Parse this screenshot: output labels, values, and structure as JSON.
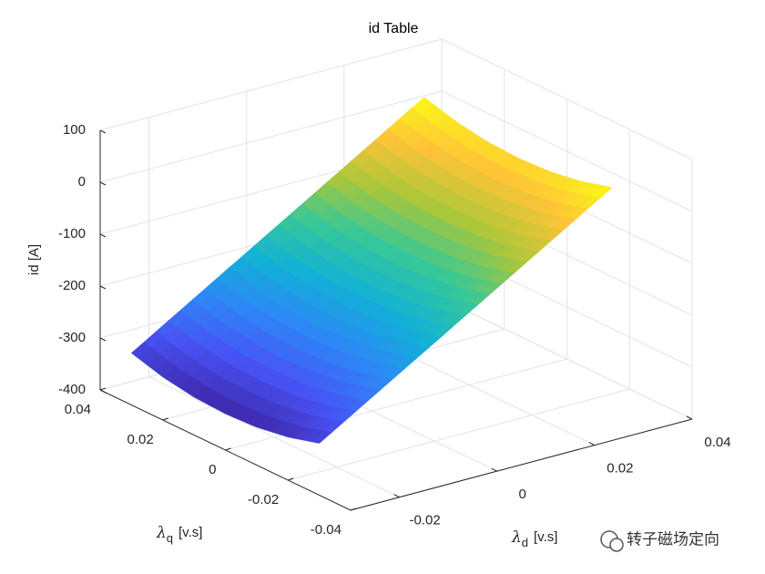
{
  "chart_data": {
    "type": "surface",
    "title": "id Table",
    "xlabel": {
      "symbol": "λ",
      "subscript": "d",
      "text": "[v.s]"
    },
    "ylabel": {
      "symbol": "λ",
      "subscript": "q",
      "text": "[v.s]"
    },
    "zlabel": "id [A]",
    "x": [
      -0.03,
      -0.02,
      -0.01,
      0,
      0.01,
      0.02,
      0.03
    ],
    "y": [
      -0.03,
      -0.02,
      -0.01,
      0,
      0.01,
      0.02,
      0.03
    ],
    "z": [
      [
        -300,
        -243,
        -186,
        -129,
        -72,
        -15,
        42
      ],
      [
        -317,
        -260,
        -203,
        -146,
        -89,
        -32,
        25
      ],
      [
        -327,
        -270,
        -213,
        -156,
        -99,
        -42,
        15
      ],
      [
        -330,
        -273,
        -216,
        -159,
        -102,
        -45,
        12
      ],
      [
        -327,
        -270,
        -213,
        -156,
        -99,
        -42,
        15
      ],
      [
        -317,
        -260,
        -203,
        -146,
        -89,
        -32,
        25
      ],
      [
        -300,
        -243,
        -186,
        -129,
        -72,
        -15,
        42
      ]
    ],
    "xlim": [
      -0.03,
      0.04
    ],
    "ylim": [
      -0.04,
      0.04
    ],
    "zlim": [
      -400,
      100
    ],
    "xticks": [
      -0.02,
      0,
      0.02,
      0.04
    ],
    "yticks": [
      -0.04,
      -0.02,
      0,
      0.02,
      0.04
    ],
    "zticks": [
      -400,
      -300,
      -200,
      -100,
      0,
      100
    ],
    "colormap": "parula",
    "grid": true,
    "watermark": "转子磁场定向"
  }
}
